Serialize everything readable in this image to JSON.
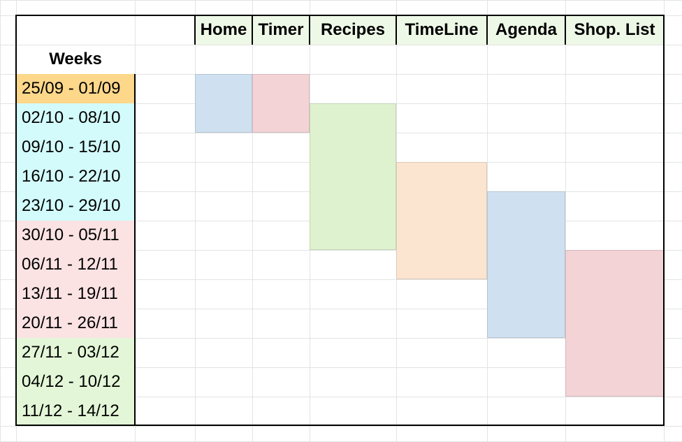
{
  "weeks_header": "Weeks",
  "columns": [
    {
      "label": "Home",
      "bar_color": "#cfe0f0"
    },
    {
      "label": "Timer",
      "bar_color": "#f3d3d6"
    },
    {
      "label": "Recipes",
      "bar_color": "#dff2cf"
    },
    {
      "label": "TimeLine",
      "bar_color": "#fbe5d1"
    },
    {
      "label": "Agenda",
      "bar_color": "#cfe0f0"
    },
    {
      "label": "Shop. List",
      "bar_color": "#f3d3d6"
    }
  ],
  "weeks": [
    {
      "label": "25/09 - 01/09",
      "color": "#fdd78a"
    },
    {
      "label": "02/10 - 08/10",
      "color": "#d3fbfb"
    },
    {
      "label": "09/10 - 15/10",
      "color": "#d3fbfb"
    },
    {
      "label": "16/10 - 22/10",
      "color": "#d3fbfb"
    },
    {
      "label": "23/10 - 29/10",
      "color": "#d3fbfb"
    },
    {
      "label": "30/10 - 05/11",
      "color": "#fbe2e3"
    },
    {
      "label": "06/11 - 12/11",
      "color": "#fbe2e3"
    },
    {
      "label": "13/11 - 19/11",
      "color": "#fbe2e3"
    },
    {
      "label": "20/11 - 26/11",
      "color": "#fbe2e3"
    },
    {
      "label": "27/11 - 03/12",
      "color": "#e3f6d7"
    },
    {
      "label": "04/12 - 10/12",
      "color": "#e3f6d7"
    },
    {
      "label": "11/12 - 14/12",
      "color": "#e3f6d7"
    }
  ],
  "colors": {
    "header_fill": "#eef8e7",
    "grid_line": "#e2e3e3",
    "border": "#000000"
  }
}
